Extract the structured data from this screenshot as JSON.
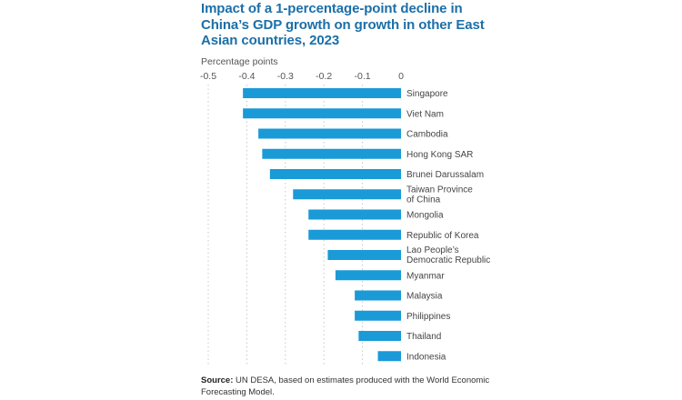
{
  "chart_data": {
    "type": "bar",
    "orientation": "horizontal",
    "title": "Impact of a 1-percentage-point decline in China’s GDP growth on growth in other East Asian countries, 2023",
    "xlabel": "Percentage points",
    "ylabel": "",
    "xlim": [
      -0.5,
      0
    ],
    "xticks": [
      -0.5,
      -0.4,
      -0.3,
      -0.2,
      -0.1,
      0
    ],
    "xtick_labels": [
      "-0.5",
      "-0.4",
      "-0.3",
      "-0.2",
      "-0.1",
      "0"
    ],
    "grid": "vertical dotted",
    "categories": [
      [
        "Singapore"
      ],
      [
        "Viet Nam"
      ],
      [
        "Cambodia"
      ],
      [
        "Hong Kong SAR"
      ],
      [
        "Brunei Darussalam"
      ],
      [
        "Taiwan Province",
        "of China"
      ],
      [
        "Mongolia"
      ],
      [
        "Republic of Korea"
      ],
      [
        "Lao People’s",
        "Democratic Republic"
      ],
      [
        "Myanmar"
      ],
      [
        "Malaysia"
      ],
      [
        "Philippines"
      ],
      [
        "Thailand"
      ],
      [
        "Indonesia"
      ]
    ],
    "values": [
      -0.41,
      -0.41,
      -0.37,
      -0.36,
      -0.34,
      -0.28,
      -0.24,
      -0.24,
      -0.19,
      -0.17,
      -0.12,
      -0.12,
      -0.11,
      -0.06
    ],
    "colors": {
      "bar": "#1a9ad7",
      "title": "#1b6fa8",
      "grid": "#c8c8c8"
    }
  },
  "header": {
    "title": "Impact of a 1-percentage-point decline in China’s GDP growth on growth in other East Asian countries, 2023",
    "unit_label": "Percentage points"
  },
  "footer": {
    "source_label": "Source:",
    "source_text": " UN DESA, based on estimates produced with the World Economic Forecasting Model."
  }
}
